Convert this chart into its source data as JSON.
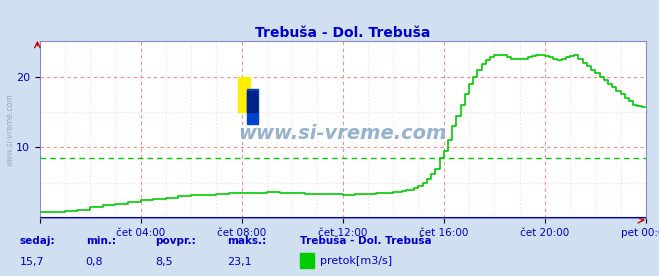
{
  "title": "Trebuša - Dol. Trebuša",
  "title_color": "#0000cc",
  "bg_color": "#d0e0f0",
  "plot_bg_color": "#ffffff",
  "line_color": "#00cc00",
  "avg_line_color": "#00cc00",
  "avg_line_value": 8.5,
  "grid_color_v": "#ff8888",
  "grid_color_h": "#ff8888",
  "axis_color": "#0000cc",
  "tick_color": "#0000cc",
  "x_ticks": [
    0,
    240,
    480,
    720,
    960,
    1200,
    1440
  ],
  "x_tick_labels": [
    "",
    "čet 04:00",
    "čet 08:00",
    "čet 12:00",
    "čet 16:00",
    "čet 20:00",
    "pet 00:00"
  ],
  "y_ticks": [
    10,
    20
  ],
  "ylim": [
    0,
    25
  ],
  "xlim": [
    0,
    1440
  ],
  "footer_labels": [
    "sedaj:",
    "min.:",
    "povpr.:",
    "maks.:"
  ],
  "footer_values": [
    "15,7",
    "0,8",
    "8,5",
    "23,1"
  ],
  "footer_station": "Trebuša - Dol. Trebuša",
  "footer_legend": "pretok[m3/s]",
  "footer_color": "#0000cc",
  "watermark": "www.si-vreme.com",
  "flow_data": [
    [
      0,
      0.8
    ],
    [
      10,
      0.8
    ],
    [
      30,
      0.9
    ],
    [
      60,
      1.0
    ],
    [
      90,
      1.2
    ],
    [
      120,
      1.5
    ],
    [
      150,
      1.8
    ],
    [
      180,
      2.0
    ],
    [
      210,
      2.3
    ],
    [
      240,
      2.5
    ],
    [
      270,
      2.7
    ],
    [
      300,
      2.9
    ],
    [
      330,
      3.1
    ],
    [
      360,
      3.2
    ],
    [
      390,
      3.3
    ],
    [
      420,
      3.4
    ],
    [
      450,
      3.5
    ],
    [
      480,
      3.55
    ],
    [
      510,
      3.6
    ],
    [
      540,
      3.65
    ],
    [
      570,
      3.6
    ],
    [
      600,
      3.5
    ],
    [
      630,
      3.45
    ],
    [
      660,
      3.4
    ],
    [
      690,
      3.35
    ],
    [
      720,
      3.3
    ],
    [
      750,
      3.35
    ],
    [
      780,
      3.4
    ],
    [
      800,
      3.5
    ],
    [
      820,
      3.6
    ],
    [
      840,
      3.7
    ],
    [
      860,
      3.8
    ],
    [
      870,
      3.9
    ],
    [
      880,
      4.0
    ],
    [
      890,
      4.2
    ],
    [
      900,
      4.5
    ],
    [
      910,
      5.0
    ],
    [
      920,
      5.5
    ],
    [
      930,
      6.2
    ],
    [
      940,
      7.0
    ],
    [
      950,
      8.5
    ],
    [
      960,
      9.5
    ],
    [
      970,
      11.0
    ],
    [
      980,
      13.0
    ],
    [
      990,
      14.5
    ],
    [
      1000,
      16.0
    ],
    [
      1010,
      17.5
    ],
    [
      1020,
      19.0
    ],
    [
      1030,
      20.0
    ],
    [
      1040,
      21.0
    ],
    [
      1050,
      21.8
    ],
    [
      1060,
      22.3
    ],
    [
      1070,
      22.8
    ],
    [
      1080,
      23.1
    ],
    [
      1090,
      23.1
    ],
    [
      1100,
      23.1
    ],
    [
      1110,
      22.8
    ],
    [
      1120,
      22.5
    ],
    [
      1130,
      22.5
    ],
    [
      1140,
      22.5
    ],
    [
      1150,
      22.5
    ],
    [
      1160,
      22.8
    ],
    [
      1170,
      23.0
    ],
    [
      1180,
      23.1
    ],
    [
      1190,
      23.1
    ],
    [
      1200,
      23.0
    ],
    [
      1210,
      22.8
    ],
    [
      1220,
      22.5
    ],
    [
      1230,
      22.3
    ],
    [
      1240,
      22.5
    ],
    [
      1250,
      22.8
    ],
    [
      1260,
      23.0
    ],
    [
      1270,
      23.1
    ],
    [
      1280,
      22.5
    ],
    [
      1290,
      22.0
    ],
    [
      1300,
      21.5
    ],
    [
      1310,
      21.0
    ],
    [
      1320,
      20.5
    ],
    [
      1330,
      20.0
    ],
    [
      1340,
      19.5
    ],
    [
      1350,
      19.0
    ],
    [
      1360,
      18.5
    ],
    [
      1370,
      18.0
    ],
    [
      1380,
      17.5
    ],
    [
      1390,
      17.0
    ],
    [
      1400,
      16.5
    ],
    [
      1410,
      16.0
    ],
    [
      1420,
      15.8
    ],
    [
      1430,
      15.7
    ],
    [
      1440,
      15.7
    ]
  ]
}
